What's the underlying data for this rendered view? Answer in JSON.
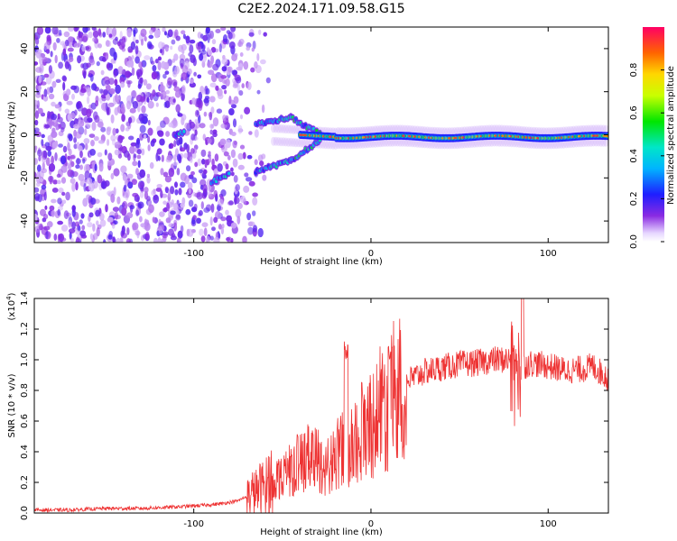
{
  "title": "C2E2.2024.171.09.58.G15",
  "chart_data": [
    {
      "type": "heatmap",
      "xlabel": "Height of straight line (km)",
      "ylabel": "Frequency (Hz)",
      "xlim": [
        -190,
        134
      ],
      "ylim": [
        -50,
        50
      ],
      "xticks": [
        -100,
        0,
        100
      ],
      "xtick_labels": [
        "-100",
        "0",
        "100"
      ],
      "yticks": [
        -40,
        -20,
        0,
        20,
        40
      ],
      "ytick_labels": [
        "-40",
        "-20",
        "0",
        "20",
        "40"
      ],
      "colorbar": {
        "label": "Normalized spectral amplitude",
        "range": [
          0,
          1
        ],
        "ticks": [
          0.0,
          0.2,
          0.4,
          0.6,
          0.8
        ],
        "tick_labels": [
          "0.0",
          "0.2",
          "0.4",
          "0.6",
          "0.8"
        ],
        "colormap": "rainbow (violet to red)"
      },
      "features": {
        "noise_region_x": [
          -190,
          -65
        ],
        "signal_branches": [
          {
            "x": [
              -110,
              -105
            ],
            "y": [
              0,
              1
            ]
          },
          {
            "x": [
              -90,
              -80
            ],
            "y": [
              -22,
              -18
            ]
          },
          {
            "x": [
              -65,
              -45
            ],
            "y": [
              5,
              8
            ]
          },
          {
            "x": [
              -65,
              -45
            ],
            "y": [
              -17,
              -12
            ]
          }
        ],
        "main_band": {
          "x": [
            -40,
            134
          ],
          "y": [
            -2,
            1
          ]
        }
      }
    },
    {
      "type": "line",
      "xlabel": "Height of straight line (km)",
      "ylabel": "SNR (10 * v/v)",
      "scale_label_base": "(x10",
      "scale_label_exp": "4",
      "scale_label_end": ")",
      "xlim": [
        -190,
        134
      ],
      "ylim": [
        0,
        1.4
      ],
      "xticks": [
        -100,
        0,
        100
      ],
      "xtick_labels": [
        "-100",
        "0",
        "100"
      ],
      "yticks": [
        0.0,
        0.2,
        0.4,
        0.6,
        0.8,
        1.0,
        1.2,
        1.4
      ],
      "ytick_labels": [
        "0.0",
        "0.2",
        "0.4",
        "0.6",
        "0.8",
        "1.0",
        "1.2",
        "1.4"
      ],
      "line_color": "#ee3333",
      "series": [
        {
          "x": [
            -190,
            -170,
            -150,
            -130,
            -110,
            -95,
            -85,
            -75,
            -65,
            -55,
            -45,
            -38,
            -32,
            -25,
            -18,
            -12,
            -6,
            0,
            6,
            12,
            20,
            30,
            40,
            50,
            60,
            70,
            80,
            85,
            90,
            100,
            110,
            120,
            125,
            134
          ],
          "values": [
            0.02,
            0.02,
            0.03,
            0.03,
            0.04,
            0.05,
            0.06,
            0.08,
            0.14,
            0.22,
            0.3,
            0.35,
            0.38,
            0.3,
            0.4,
            0.45,
            0.55,
            0.62,
            0.7,
            0.78,
            0.86,
            0.92,
            0.95,
            0.97,
            0.98,
            1.0,
            1.0,
            0.95,
            0.98,
            0.96,
            0.93,
            0.94,
            0.96,
            0.88
          ]
        }
      ]
    }
  ]
}
